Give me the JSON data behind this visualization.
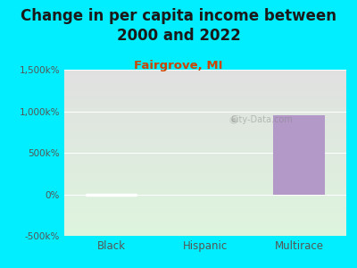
{
  "title": "Change in per capita income between\n2000 and 2022",
  "subtitle": "Fairgrove, MI",
  "categories": [
    "Black",
    "Hispanic",
    "Multirace"
  ],
  "bar_color": "#b399c8",
  "background_outer": "#00eeff",
  "plot_bg_top": "#e0e0e0",
  "plot_bg_bottom": "#e8f5e8",
  "ylim": [
    -500000,
    1500000
  ],
  "yticks": [
    -500000,
    0,
    500000,
    1000000,
    1500000
  ],
  "ytick_labels": [
    "-500k%",
    "0%",
    "500k%",
    "1,000k%",
    "1,500k%"
  ],
  "title_fontsize": 12,
  "subtitle_fontsize": 9.5,
  "title_color": "#1a1a1a",
  "subtitle_color": "#cc4400",
  "tick_color": "#555555",
  "watermark": "City-Data.com",
  "multirace_bar_value": 950000,
  "zero_line_color": "#ffffff"
}
